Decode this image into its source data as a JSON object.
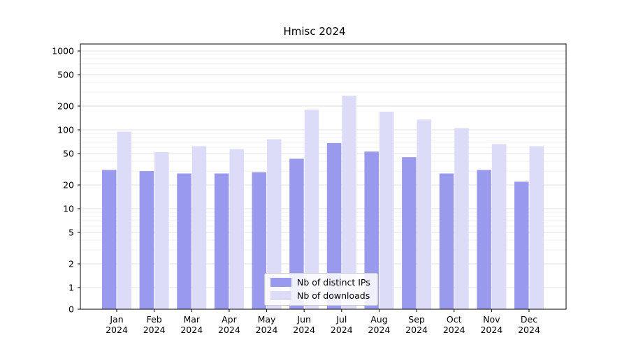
{
  "title": "Hmisc 2024",
  "chart_data": {
    "type": "bar",
    "title": "Hmisc 2024",
    "y_scale": "log",
    "grid": true,
    "legend_position": "lower center",
    "y_ticks": [
      0,
      1,
      2,
      5,
      10,
      20,
      50,
      100,
      200,
      500,
      1000
    ],
    "ylim": [
      0,
      1000
    ],
    "categories": [
      {
        "month": "Jan",
        "year": "2024"
      },
      {
        "month": "Feb",
        "year": "2024"
      },
      {
        "month": "Mar",
        "year": "2024"
      },
      {
        "month": "Apr",
        "year": "2024"
      },
      {
        "month": "May",
        "year": "2024"
      },
      {
        "month": "Jun",
        "year": "2024"
      },
      {
        "month": "Jul",
        "year": "2024"
      },
      {
        "month": "Aug",
        "year": "2024"
      },
      {
        "month": "Sep",
        "year": "2024"
      },
      {
        "month": "Oct",
        "year": "2024"
      },
      {
        "month": "Nov",
        "year": "2024"
      },
      {
        "month": "Dec",
        "year": "2024"
      }
    ],
    "series": [
      {
        "name": "Nb of distinct IPs",
        "color": "#9999ee",
        "values": [
          31,
          30,
          28,
          28,
          29,
          43,
          68,
          53,
          45,
          28,
          31,
          22
        ]
      },
      {
        "name": "Nb of downloads",
        "color": "#dcdcf8",
        "values": [
          95,
          52,
          62,
          57,
          76,
          180,
          270,
          170,
          135,
          105,
          66,
          62
        ]
      }
    ]
  }
}
